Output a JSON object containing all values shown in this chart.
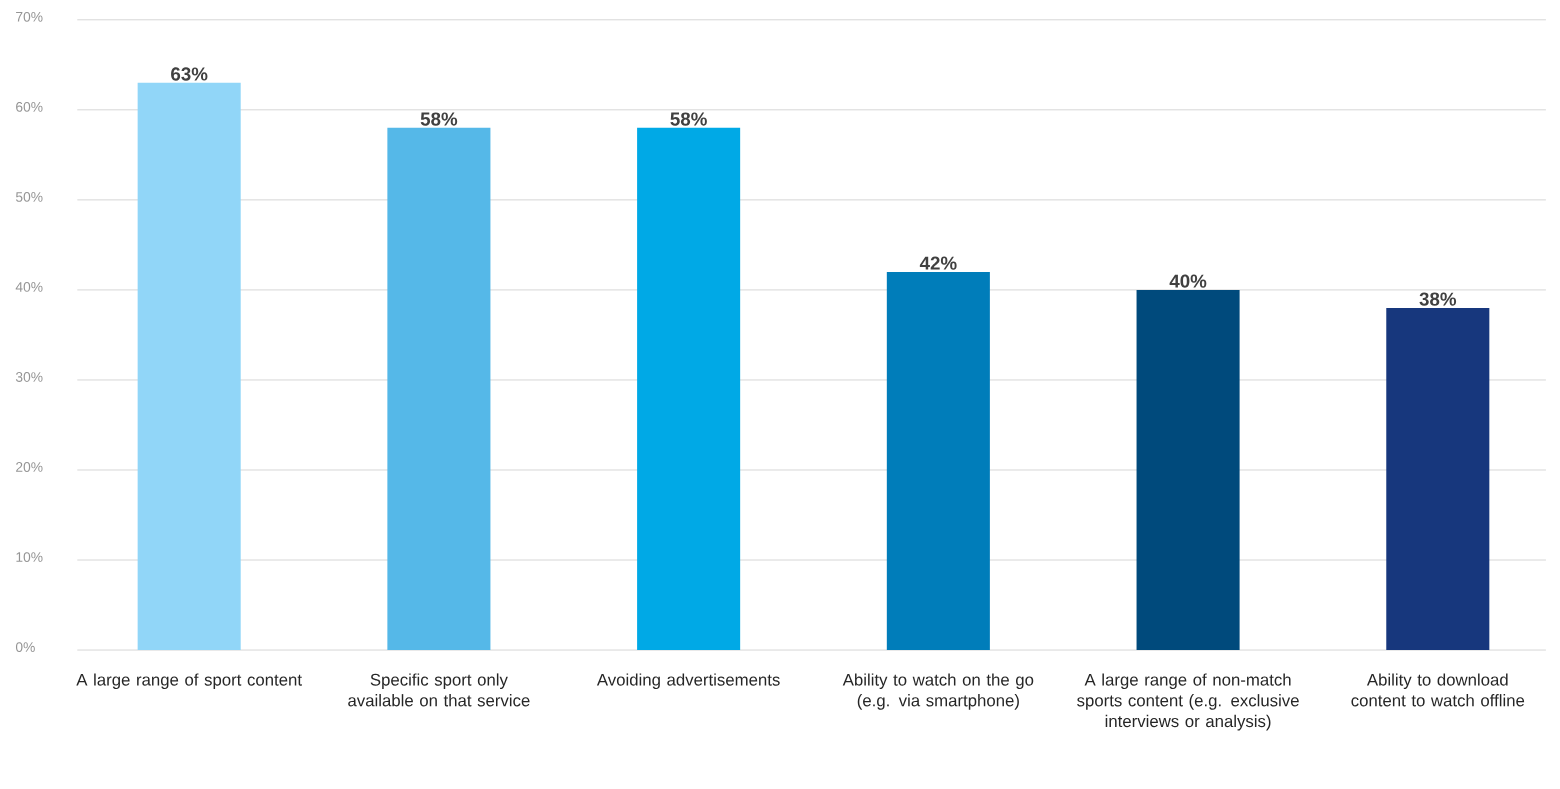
{
  "chart_data": {
    "type": "bar",
    "categories": [
      "A large range of sport content",
      "Specific sport only available on that service",
      "Avoiding advertisements",
      "Ability to watch on the go (e.g. via smartphone)",
      "A large range of non-match sports content (e.g. exclusive interviews or analysis)",
      "Ability to download content to watch offline"
    ],
    "values": [
      63,
      58,
      58,
      42,
      40,
      38
    ],
    "value_labels": [
      "63%",
      "58%",
      "58%",
      "42%",
      "40%",
      "38%"
    ],
    "colors": [
      "#91d6f8",
      "#55b8e8",
      "#00a9e6",
      "#007dba",
      "#004a7c",
      "#17377d"
    ],
    "ylim": [
      0,
      70
    ],
    "yticks": [
      {
        "value": 0,
        "label": "0%"
      },
      {
        "value": 10,
        "label": "10%"
      },
      {
        "value": 20,
        "label": "20%"
      },
      {
        "value": 30,
        "label": "30%"
      },
      {
        "value": 40,
        "label": "40%"
      },
      {
        "value": 50,
        "label": "50%"
      },
      {
        "value": 60,
        "label": "60%"
      },
      {
        "value": 70,
        "label": "70%"
      }
    ],
    "grid": "y"
  }
}
